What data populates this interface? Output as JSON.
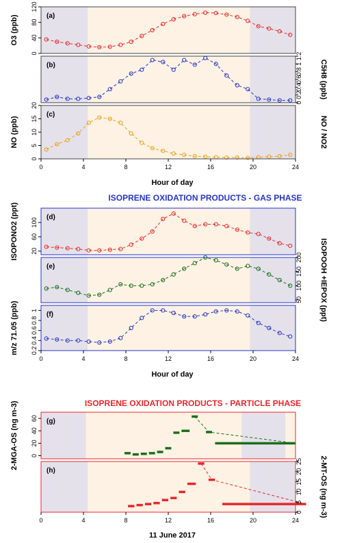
{
  "colors": {
    "red": "#e8262b",
    "blue": "#2534c8",
    "orange": "#e8a21a",
    "green": "#1b6e1b",
    "night": "#e4e1ea",
    "day": "#fdf2e4"
  },
  "sections": {
    "gas_title": "ISOPRENE OXIDATION PRODUCTS - GAS PHASE",
    "particle_title": "ISOPRENE OXIDATION PRODUCTS - PARTICLE PHASE"
  },
  "chart_data": [
    {
      "type": "line",
      "panel": "(a)",
      "ylabel": "O3 (ppb)",
      "yaxis_side": "left",
      "ylim": [
        0,
        120
      ],
      "yticks": [
        0,
        40,
        80,
        120
      ],
      "xlim": [
        0,
        24
      ],
      "xticks": [
        0,
        4,
        8,
        12,
        16,
        20,
        24
      ],
      "night_shading": [
        [
          0,
          4.4
        ],
        [
          19.7,
          24
        ]
      ],
      "color": "#e8262b",
      "x": [
        0.5,
        1.5,
        2.5,
        3.5,
        4.5,
        5.5,
        6.5,
        7.5,
        8.5,
        9.5,
        10.5,
        11.5,
        12.5,
        13.5,
        14.5,
        15.5,
        16.5,
        17.5,
        18.5,
        19.5,
        20.5,
        21.5,
        22.5,
        23.5
      ],
      "y": [
        36,
        30,
        26,
        22,
        18,
        16,
        17,
        22,
        30,
        45,
        60,
        76,
        88,
        96,
        101,
        105,
        104,
        100,
        94,
        84,
        70,
        64,
        57,
        48
      ]
    },
    {
      "type": "line",
      "panel": "(b)",
      "ylabel": "C5H8 (ppb)",
      "yaxis_side": "right",
      "ylim": [
        0,
        1.2
      ],
      "yticks": [
        0,
        0.2,
        0.4,
        0.6,
        0.8,
        1.0,
        1.2
      ],
      "color": "#2534c8",
      "x": [
        0.5,
        1.5,
        2.5,
        3.5,
        4.5,
        5.5,
        6.5,
        7.5,
        8.5,
        9.5,
        10.5,
        11.5,
        12.5,
        13.5,
        14.5,
        15.5,
        16.5,
        17.5,
        18.5,
        19.5,
        20.5,
        21.5,
        22.5,
        23.5
      ],
      "y": [
        0.08,
        0.15,
        0.1,
        0.1,
        0.12,
        0.15,
        0.35,
        0.55,
        0.75,
        0.85,
        1.1,
        1.05,
        0.85,
        1.1,
        0.98,
        1.15,
        1.0,
        0.7,
        0.45,
        0.35,
        0.1,
        0.08,
        0.06,
        0.06
      ]
    },
    {
      "type": "line",
      "panel": "(c)",
      "ylabel": "NO (ppb)",
      "ylabel_right": "NO / NO2",
      "yaxis_side": "left",
      "ylim": [
        0,
        20
      ],
      "yticks": [
        0,
        5,
        10,
        15,
        20
      ],
      "xlabel": "Hour of day",
      "color": "#e8a21a",
      "x": [
        0.5,
        1.5,
        2.5,
        3.5,
        4.5,
        5.5,
        6.5,
        7.5,
        8.5,
        9.5,
        10.5,
        11.5,
        12.5,
        13.5,
        14.5,
        15.5,
        16.5,
        17.5,
        18.5,
        19.5,
        20.5,
        21.5,
        22.5,
        23.5
      ],
      "y": [
        3.5,
        5.5,
        7,
        9.5,
        13.5,
        15.5,
        15,
        13.5,
        9.5,
        6,
        4,
        3,
        2,
        1.5,
        1,
        0.8,
        0.6,
        0.5,
        0.5,
        0.4,
        0.6,
        0.8,
        1,
        1.5
      ]
    },
    {
      "type": "line",
      "panel": "(d)",
      "ylabel": "ISOPONO2 (ppt)",
      "yaxis_side": "left",
      "ylim": [
        10,
        140
      ],
      "yticks": [
        20,
        60,
        100
      ],
      "color": "#e8262b",
      "x": [
        0.5,
        1.5,
        2.5,
        3.5,
        4.5,
        5.5,
        6.5,
        7.5,
        8.5,
        9.5,
        10.5,
        11.5,
        12.5,
        13.5,
        14.5,
        15.5,
        16.5,
        17.5,
        18.5,
        19.5,
        20.5,
        21.5,
        22.5,
        23.5
      ],
      "y": [
        32,
        30,
        28,
        26,
        22,
        22,
        24,
        26,
        38,
        55,
        75,
        110,
        125,
        105,
        90,
        95,
        95,
        90,
        80,
        72,
        68,
        55,
        42,
        35
      ]
    },
    {
      "type": "line",
      "panel": "(e)",
      "ylabel": "ISOPOOH +IEPOX (ppt)",
      "yaxis_side": "right",
      "ylim": [
        40,
        200
      ],
      "yticks": [
        50,
        100,
        150,
        200
      ],
      "color": "#1b6e1b",
      "x": [
        0.5,
        1.5,
        2.5,
        3.5,
        4.5,
        5.5,
        6.5,
        7.5,
        8.5,
        9.5,
        10.5,
        11.5,
        12.5,
        13.5,
        14.5,
        15.5,
        16.5,
        17.5,
        18.5,
        19.5,
        20.5,
        21.5,
        22.5,
        23.5
      ],
      "y": [
        90,
        95,
        85,
        75,
        65,
        68,
        85,
        105,
        100,
        100,
        105,
        120,
        140,
        160,
        180,
        200,
        190,
        175,
        160,
        170,
        160,
        140,
        120,
        100
      ]
    },
    {
      "type": "line",
      "panel": "(f)",
      "ylabel": "m/z 71.05 (ppb)",
      "yaxis_side": "left",
      "ylim": [
        0.2,
        1.1
      ],
      "yticks": [
        0.2,
        0.4,
        0.6,
        0.8,
        1.0
      ],
      "xlabel": "Hour of day",
      "color": "#2534c8",
      "x": [
        0.5,
        1.5,
        2.5,
        3.5,
        4.5,
        5.5,
        6.5,
        7.5,
        8.5,
        9.5,
        10.5,
        11.5,
        12.5,
        13.5,
        14.5,
        15.5,
        16.5,
        17.5,
        18.5,
        19.5,
        20.5,
        21.5,
        22.5,
        23.5
      ],
      "y": [
        0.44,
        0.42,
        0.4,
        0.4,
        0.38,
        0.36,
        0.38,
        0.45,
        0.65,
        0.85,
        1.0,
        1.0,
        0.95,
        0.88,
        0.88,
        0.92,
        0.98,
        1.0,
        0.98,
        0.9,
        0.75,
        0.65,
        0.55,
        0.48
      ]
    },
    {
      "type": "bar",
      "panel": "(g)",
      "ylabel": "2-MGA-OS (ng m-3)",
      "yaxis_side": "left",
      "ylim": [
        -5,
        70
      ],
      "yticks": [
        0,
        20,
        40,
        60
      ],
      "xlim": [
        0,
        25
      ],
      "color": "#1b6e1b",
      "x_start": [
        8.2,
        9.0,
        9.8,
        10.6,
        11.4,
        12.2,
        13.0,
        13.8,
        14.8,
        16.2,
        17.1
      ],
      "x_end": [
        8.8,
        9.6,
        10.4,
        11.2,
        12.0,
        12.8,
        13.6,
        14.6,
        15.4,
        16.8,
        25.0
      ],
      "values": [
        4,
        2,
        3,
        4,
        6,
        12,
        37,
        40,
        63,
        38,
        20
      ]
    },
    {
      "type": "bar",
      "panel": "(h)",
      "ylabel": "2-MT-OS (ng m-3)",
      "yaxis_side": "right",
      "ylim": [
        0,
        25
      ],
      "yticks": [
        0,
        5,
        10,
        15,
        20,
        25
      ],
      "xlabel": "11 June 2017",
      "color": "#e8262b",
      "x_start": [
        8.2,
        9.0,
        9.8,
        10.6,
        11.4,
        12.2,
        13.0,
        13.8,
        14.8,
        15.8,
        17.1
      ],
      "x_end": [
        8.8,
        9.6,
        10.4,
        11.2,
        12.0,
        12.8,
        13.6,
        14.6,
        15.4,
        16.4,
        25.0
      ],
      "values": [
        3,
        3.5,
        4,
        4.5,
        6,
        7,
        10,
        14,
        24,
        16,
        4
      ]
    }
  ]
}
